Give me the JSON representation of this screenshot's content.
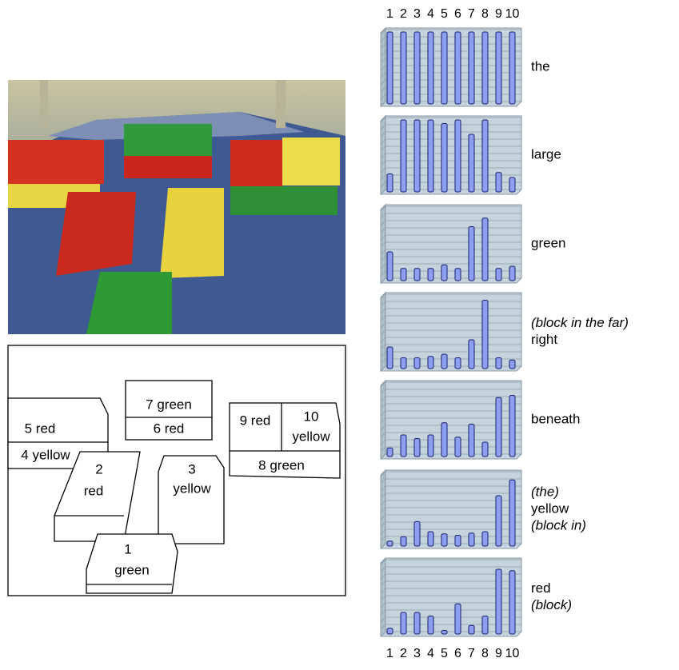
{
  "diagram": {
    "blocks": [
      {
        "label": [
          "5 red",
          "4 yellow"
        ]
      },
      {
        "label": [
          "7 green",
          "6 red"
        ]
      },
      {
        "label": [
          "9 red",
          "10",
          "yellow",
          "8 green"
        ]
      },
      {
        "label": [
          "2",
          "red"
        ]
      },
      {
        "label": [
          "3",
          "yellow"
        ]
      },
      {
        "label": [
          "1",
          "green"
        ]
      }
    ]
  },
  "chart_data": [
    {
      "type": "bar",
      "title": [
        "the"
      ],
      "categories": [
        "1",
        "2",
        "3",
        "4",
        "5",
        "6",
        "7",
        "8",
        "9",
        "10"
      ],
      "values": [
        1,
        1,
        1,
        1,
        1,
        1,
        1,
        1,
        1,
        1
      ],
      "color": "#8c9ff2",
      "ylim": [
        0,
        1
      ],
      "yticks": [
        0,
        0.1,
        0.2,
        0.3,
        0.4,
        0.5,
        0.6,
        0.7,
        0.8,
        0.9,
        1
      ],
      "grid": true
    },
    {
      "type": "bar",
      "title": [
        "large"
      ],
      "categories": [
        "1",
        "2",
        "3",
        "4",
        "5",
        "6",
        "7",
        "8",
        "9",
        "10"
      ],
      "values": [
        0.25,
        1,
        1,
        1,
        0.95,
        1,
        0.8,
        1,
        0.27,
        0.2
      ],
      "color": "#8c9ff2",
      "ylim": [
        0,
        1
      ],
      "yticks": [
        0,
        0.1,
        0.2,
        0.3,
        0.4,
        0.5,
        0.6,
        0.7,
        0.8,
        0.9,
        1
      ],
      "grid": true
    },
    {
      "type": "bar",
      "title": [
        "green"
      ],
      "categories": [
        "1",
        "2",
        "3",
        "4",
        "5",
        "6",
        "7",
        "8",
        "9",
        "10"
      ],
      "values": [
        0.4,
        0.17,
        0.17,
        0.17,
        0.22,
        0.17,
        0.75,
        0.87,
        0.17,
        0.2
      ],
      "color": "#8c9ff2",
      "ylim": [
        0,
        1
      ],
      "yticks": [
        0,
        0.1,
        0.2,
        0.3,
        0.4,
        0.5,
        0.6,
        0.7,
        0.8,
        0.9,
        1
      ],
      "grid": true
    },
    {
      "type": "bar",
      "title": [
        "(block in the far)",
        "right"
      ],
      "categories": [
        "1",
        "2",
        "3",
        "4",
        "5",
        "6",
        "7",
        "8",
        "9",
        "10"
      ],
      "values": [
        0.3,
        0.15,
        0.15,
        0.17,
        0.2,
        0.15,
        0.4,
        0.95,
        0.15,
        0.12
      ],
      "color": "#8c9ff2",
      "ylim": [
        0,
        1
      ],
      "yticks": [
        0,
        0.1,
        0.2,
        0.3,
        0.4,
        0.5,
        0.6,
        0.7,
        0.8,
        0.9,
        1
      ],
      "grid": true
    },
    {
      "type": "bar",
      "title": [
        "beneath"
      ],
      "categories": [
        "1",
        "2",
        "3",
        "4",
        "5",
        "6",
        "7",
        "8",
        "9",
        "10"
      ],
      "values": [
        0.12,
        0.3,
        0.25,
        0.3,
        0.47,
        0.27,
        0.45,
        0.2,
        0.82,
        0.85
      ],
      "color": "#8c9ff2",
      "ylim": [
        0,
        1
      ],
      "yticks": [
        0,
        0.1,
        0.2,
        0.3,
        0.4,
        0.5,
        0.6,
        0.7,
        0.8,
        0.9,
        1
      ],
      "grid": true
    },
    {
      "type": "bar",
      "title": [
        "(the)",
        "yellow",
        "(block in)"
      ],
      "categories": [
        "1",
        "2",
        "3",
        "4",
        "5",
        "6",
        "7",
        "8",
        "9",
        "10"
      ],
      "values": [
        0.07,
        0.13,
        0.34,
        0.2,
        0.17,
        0.15,
        0.18,
        0.2,
        0.7,
        0.92
      ],
      "color": "#8c9ff2",
      "ylim": [
        0,
        1
      ],
      "yticks": [
        0,
        0.1,
        0.2,
        0.3,
        0.4,
        0.5,
        0.6,
        0.7,
        0.8,
        0.9,
        1
      ],
      "grid": true
    },
    {
      "type": "bar",
      "title": [
        "red",
        "(block)"
      ],
      "categories": [
        "1",
        "2",
        "3",
        "4",
        "5",
        "6",
        "7",
        "8",
        "9",
        "10"
      ],
      "values": [
        0.08,
        0.3,
        0.3,
        0.25,
        0.05,
        0.42,
        0.12,
        0.25,
        0.9,
        0.88
      ],
      "color": "#8c9ff2",
      "ylim": [
        0,
        1
      ],
      "yticks": [
        0,
        0.1,
        0.2,
        0.3,
        0.4,
        0.5,
        0.6,
        0.7,
        0.8,
        0.9,
        1
      ],
      "grid": true
    }
  ]
}
